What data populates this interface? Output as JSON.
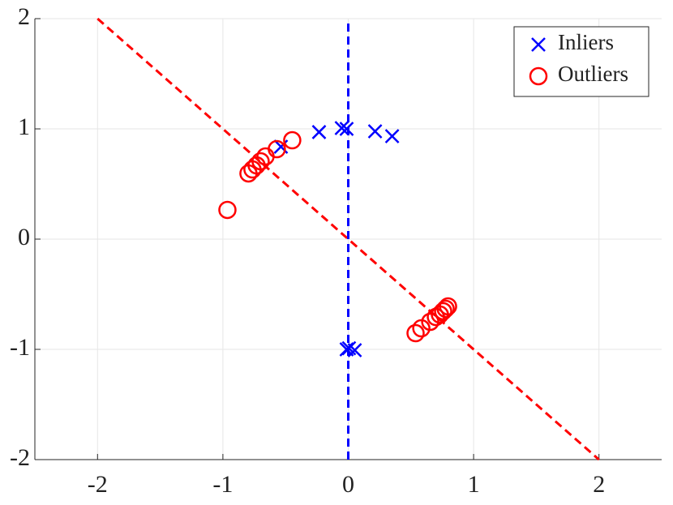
{
  "chart_data": {
    "type": "scatter",
    "xlim": [
      -2.5,
      2.5
    ],
    "ylim": [
      -2,
      2
    ],
    "xticks": [
      -2,
      -1,
      0,
      1,
      2
    ],
    "yticks": [
      -2,
      -1,
      0,
      1,
      2
    ],
    "grid": true,
    "legend": "top-right",
    "lines": [
      {
        "color": "#ff0000",
        "x": [
          -2,
          2
        ],
        "y": [
          2,
          -2
        ]
      },
      {
        "color": "#0000ff",
        "x": [
          0,
          0
        ],
        "y": [
          -2,
          2
        ]
      }
    ],
    "series": [
      {
        "name": "Inliers",
        "color": "#0000ff",
        "marker": "x",
        "x": [
          -0.537,
          -0.233,
          -0.052,
          -0.013,
          0.214,
          0.35,
          -0.013,
          0.052,
          0.006
        ],
        "y": [
          0.838,
          0.971,
          1.007,
          1.0,
          0.978,
          0.934,
          -1.0,
          -1.007,
          -0.99
        ]
      },
      {
        "name": "Outliers",
        "color": "#ff0000",
        "marker": "o",
        "x": [
          -0.964,
          -0.796,
          -0.764,
          -0.731,
          -0.699,
          -0.66,
          -0.57,
          -0.447,
          0.537,
          0.583,
          0.654,
          0.699,
          0.731,
          0.757,
          0.777,
          0.796
        ],
        "y": [
          0.265,
          0.596,
          0.632,
          0.669,
          0.706,
          0.75,
          0.816,
          0.897,
          -0.853,
          -0.809,
          -0.75,
          -0.706,
          -0.684,
          -0.654,
          -0.632,
          -0.61
        ]
      }
    ]
  }
}
